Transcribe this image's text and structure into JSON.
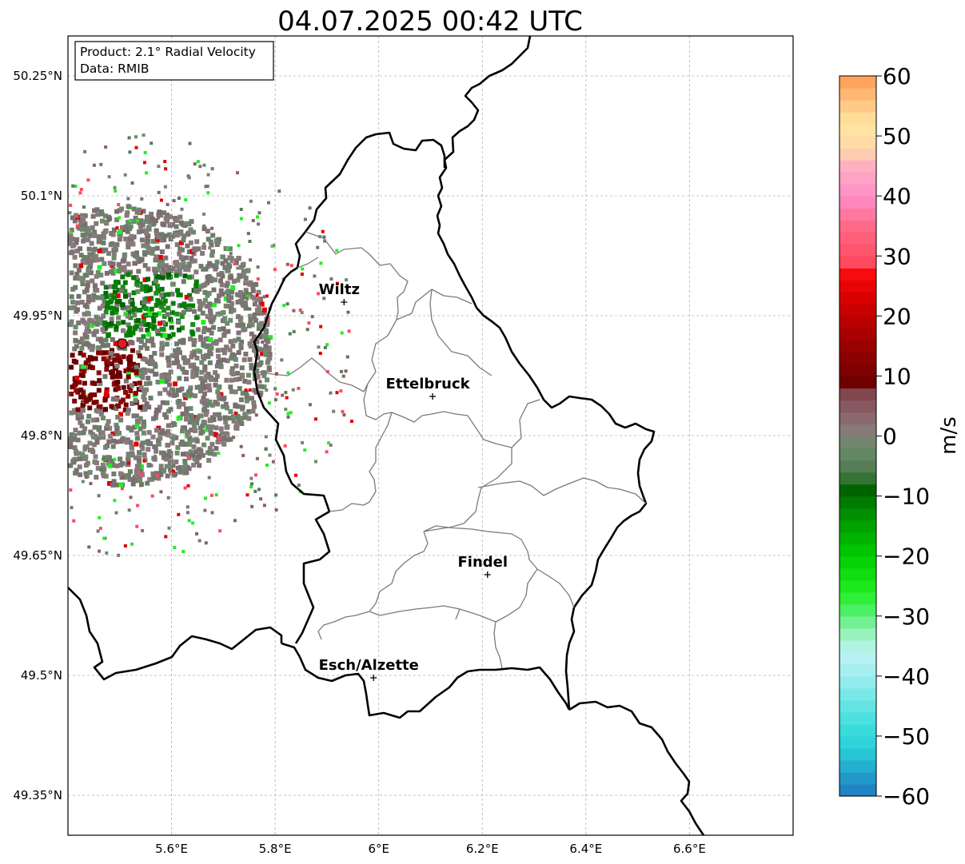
{
  "title": "04.07.2025 00:42 UTC",
  "info_box": {
    "line1": "Product: 2.1° Radial Velocity",
    "line2": "Data: RMIB"
  },
  "axes": {
    "lon_ticks": [
      {
        "value": 5.6,
        "label": "5.6°E"
      },
      {
        "value": 5.8,
        "label": "5.8°E"
      },
      {
        "value": 6.0,
        "label": "6°E"
      },
      {
        "value": 6.2,
        "label": "6.2°E"
      },
      {
        "value": 6.4,
        "label": "6.4°E"
      },
      {
        "value": 6.6,
        "label": "6.6°E"
      }
    ],
    "lat_ticks": [
      {
        "value": 50.25,
        "label": "50.25°N"
      },
      {
        "value": 50.1,
        "label": "50.1°N"
      },
      {
        "value": 49.95,
        "label": "49.95°N"
      },
      {
        "value": 49.8,
        "label": "49.8°N"
      },
      {
        "value": 49.65,
        "label": "49.65°N"
      },
      {
        "value": 49.5,
        "label": "49.5°N"
      },
      {
        "value": 49.35,
        "label": "49.35°N"
      }
    ],
    "lon_range": [
      5.4,
      6.8
    ],
    "lat_range": [
      49.3,
      50.3
    ],
    "grid": true
  },
  "cities": [
    {
      "name": "Wiltz",
      "lon": 5.933,
      "lat": 49.967
    },
    {
      "name": "Ettelbruck",
      "lon": 6.104,
      "lat": 49.849
    },
    {
      "name": "Findel",
      "lon": 6.21,
      "lat": 49.626
    },
    {
      "name": "Esch/Alzette",
      "lon": 5.99,
      "lat": 49.497
    }
  ],
  "radar": {
    "lon": 5.505,
    "lat": 49.915,
    "color": "#e41a1c"
  },
  "colorbar": {
    "label": "m/s",
    "min": -60,
    "max": 60,
    "ticks": [
      {
        "value": 60,
        "label": "60"
      },
      {
        "value": 50,
        "label": "50"
      },
      {
        "value": 40,
        "label": "40"
      },
      {
        "value": 30,
        "label": "30"
      },
      {
        "value": 20,
        "label": "20"
      },
      {
        "value": 10,
        "label": "10"
      },
      {
        "value": 0,
        "label": "0"
      },
      {
        "value": -10,
        "label": "−10"
      },
      {
        "value": -20,
        "label": "−20"
      },
      {
        "value": -30,
        "label": "−30"
      },
      {
        "value": -40,
        "label": "−40"
      },
      {
        "value": -50,
        "label": "−50"
      },
      {
        "value": -60,
        "label": "−60"
      }
    ],
    "stops": [
      {
        "v": -60,
        "c": "#1f78c1"
      },
      {
        "v": -56,
        "c": "#22a3cc"
      },
      {
        "v": -52,
        "c": "#29d0d9"
      },
      {
        "v": -48,
        "c": "#40dede"
      },
      {
        "v": -44,
        "c": "#6ee6e6"
      },
      {
        "v": -40,
        "c": "#9eeef0"
      },
      {
        "v": -36,
        "c": "#bff2f4"
      },
      {
        "v": -32,
        "c": "#8cf0a8"
      },
      {
        "v": -30,
        "c": "#5af07a"
      },
      {
        "v": -26,
        "c": "#22ee22"
      },
      {
        "v": -20,
        "c": "#00cc00"
      },
      {
        "v": -14,
        "c": "#009a00"
      },
      {
        "v": -9,
        "c": "#006400"
      },
      {
        "v": -6,
        "c": "#4f7a4f"
      },
      {
        "v": -2,
        "c": "#6a8a6a"
      },
      {
        "v": 1,
        "c": "#867a7a"
      },
      {
        "v": 4,
        "c": "#8a6068"
      },
      {
        "v": 8,
        "c": "#7d3f46"
      },
      {
        "v": 9,
        "c": "#700000"
      },
      {
        "v": 16,
        "c": "#a00000"
      },
      {
        "v": 24,
        "c": "#e00000"
      },
      {
        "v": 28,
        "c": "#ff1010"
      },
      {
        "v": 29,
        "c": "#ff4a60"
      },
      {
        "v": 35,
        "c": "#ff6a88"
      },
      {
        "v": 40,
        "c": "#ff8ec8"
      },
      {
        "v": 45,
        "c": "#ffb0c0"
      },
      {
        "v": 48,
        "c": "#ffd8a8"
      },
      {
        "v": 52,
        "c": "#ffe6a0"
      },
      {
        "v": 56,
        "c": "#ffc080"
      },
      {
        "v": 60,
        "c": "#ff9a50"
      }
    ]
  }
}
